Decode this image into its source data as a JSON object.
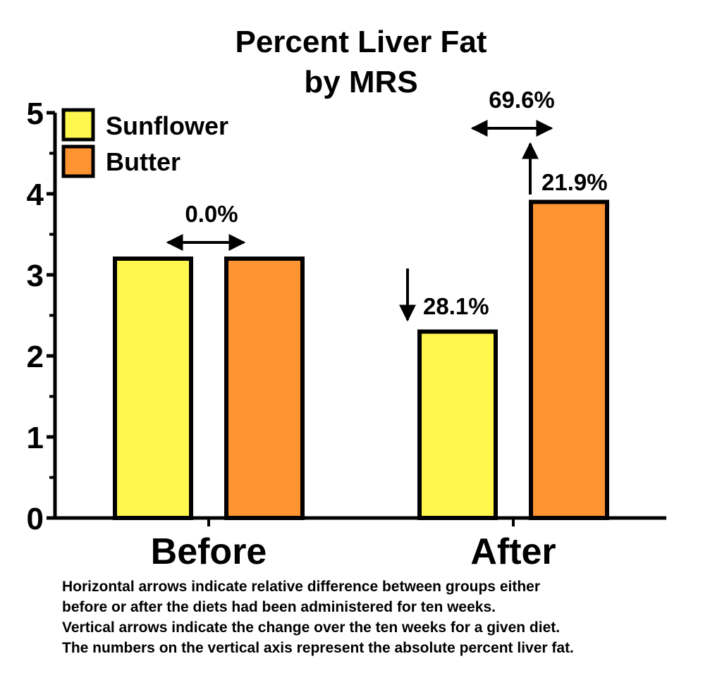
{
  "chart_data": {
    "type": "bar",
    "title_lines": [
      "Percent Liver Fat",
      "by MRS"
    ],
    "categories": [
      "Before",
      "After"
    ],
    "series": [
      {
        "name": "Sunflower",
        "color": "#FFF64E",
        "values": [
          3.2,
          2.3
        ]
      },
      {
        "name": "Butter",
        "color": "#FF9433",
        "values": [
          3.2,
          3.9
        ]
      }
    ],
    "ylim": [
      0,
      5
    ],
    "yticks": [
      "0",
      "1",
      "2",
      "3",
      "4",
      "5"
    ],
    "legend_position": "top-left",
    "grid": false,
    "annotations": {
      "before_diff": "0.0%",
      "after_diff": "69.6%",
      "sunflower_change": "28.1%",
      "butter_change": "21.9%"
    }
  },
  "caption": [
    "Horizontal arrows indicate relative difference between groups either",
    "before or after the diets had been administered for ten weeks.",
    "Vertical arrows indicate the change over the ten weeks for a given diet.",
    "The numbers on the vertical axis represent the absolute percent liver fat."
  ]
}
